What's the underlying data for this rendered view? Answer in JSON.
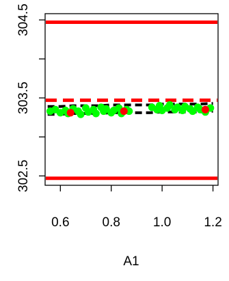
{
  "chart_data": {
    "type": "scatter",
    "title": "",
    "xlabel": "A1",
    "ylabel": "",
    "xlim": [
      0.54,
      1.22
    ],
    "ylim": [
      302.38,
      304.58
    ],
    "x_ticks": [
      0.6,
      0.8,
      1.0,
      1.2
    ],
    "x_tick_labels": [
      "0.6",
      "0.8",
      "1.0",
      "1.2"
    ],
    "y_ticks": [
      302.5,
      303.5,
      304.5
    ],
    "y_tick_labels": [
      "302.5",
      "303.5",
      "304.5"
    ],
    "y_minor_ticks": [
      303.0,
      304.0
    ],
    "reference_lines": [
      {
        "kind": "solid",
        "y": 304.47,
        "color": "#ff0000"
      },
      {
        "kind": "solid",
        "y": 302.47,
        "color": "#ff0000"
      },
      {
        "kind": "dashed",
        "y": 303.47,
        "color": "#ff0000"
      }
    ],
    "fit_curves": [
      {
        "kind": "dashed",
        "color": "#000000",
        "x": [
          0.55,
          0.6,
          0.65,
          0.7,
          0.75,
          0.8,
          0.85,
          0.9,
          0.95,
          1.0,
          1.05,
          1.1,
          1.15,
          1.2
        ],
        "y": [
          303.39,
          303.39,
          303.4,
          303.4,
          303.4,
          303.41,
          303.41,
          303.41,
          303.41,
          303.42,
          303.42,
          303.42,
          303.42,
          303.43
        ]
      },
      {
        "kind": "dashed",
        "color": "#000000",
        "x": [
          0.55,
          0.6,
          0.65,
          0.7,
          0.75,
          0.8,
          0.85,
          0.9,
          0.95,
          1.0,
          1.05,
          1.1,
          1.15,
          1.2
        ],
        "y": [
          303.29,
          303.29,
          303.3,
          303.3,
          303.3,
          303.31,
          303.31,
          303.31,
          303.31,
          303.32,
          303.32,
          303.32,
          303.32,
          303.33
        ]
      }
    ],
    "series": [
      {
        "color": "#00ff00",
        "points": [
          [
            0.56,
            303.33
          ],
          [
            0.58,
            303.35
          ],
          [
            0.6,
            303.31
          ],
          [
            0.62,
            303.34
          ],
          [
            0.63,
            303.3
          ],
          [
            0.65,
            303.36
          ],
          [
            0.67,
            303.33
          ],
          [
            0.68,
            303.29
          ],
          [
            0.7,
            303.37
          ],
          [
            0.71,
            303.32
          ],
          [
            0.73,
            303.35
          ],
          [
            0.74,
            303.3
          ],
          [
            0.76,
            303.38
          ],
          [
            0.77,
            303.33
          ],
          [
            0.78,
            303.36
          ],
          [
            0.8,
            303.31
          ],
          [
            0.81,
            303.34
          ],
          [
            0.83,
            303.37
          ],
          [
            0.84,
            303.3
          ],
          [
            0.86,
            303.35
          ],
          [
            0.87,
            303.33
          ],
          [
            0.96,
            303.38
          ],
          [
            0.98,
            303.35
          ],
          [
            0.99,
            303.4
          ],
          [
            1.0,
            303.34
          ],
          [
            1.02,
            303.37
          ],
          [
            1.03,
            303.41
          ],
          [
            1.05,
            303.35
          ],
          [
            1.06,
            303.38
          ],
          [
            1.08,
            303.34
          ],
          [
            1.09,
            303.39
          ],
          [
            1.11,
            303.36
          ],
          [
            1.12,
            303.33
          ],
          [
            1.14,
            303.38
          ],
          [
            1.15,
            303.35
          ],
          [
            1.17,
            303.32
          ],
          [
            1.19,
            303.37
          ]
        ]
      },
      {
        "color": "#ff0000",
        "points": [
          [
            0.64,
            303.31
          ],
          [
            0.85,
            303.33
          ],
          [
            1.17,
            303.35
          ]
        ]
      }
    ],
    "grid": false,
    "legend": "none"
  }
}
